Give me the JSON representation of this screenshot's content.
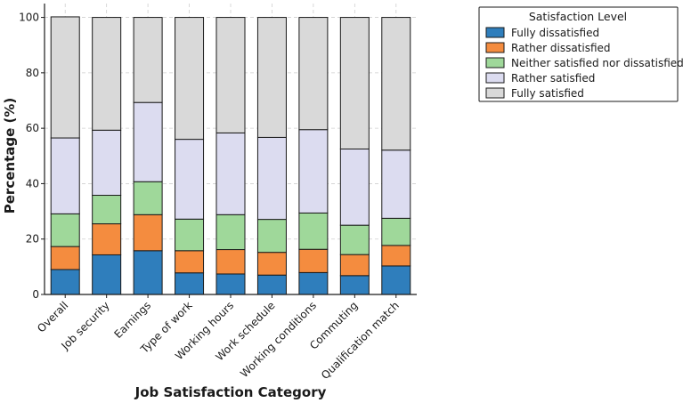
{
  "chart_data": {
    "type": "bar",
    "stacked": true,
    "title": "",
    "xlabel": "Job Satisfaction Category",
    "ylabel": "Percentage (%)",
    "ylim": [
      0,
      105
    ],
    "yticks": [
      0,
      20,
      40,
      60,
      80,
      100
    ],
    "grid": true,
    "categories": [
      "Overall",
      "Job security",
      "Earnings",
      "Type of work",
      "Working hours",
      "Work schedule",
      "Working conditions",
      "Commuting",
      "Qualification match"
    ],
    "legend": {
      "title": "Satisfaction Level",
      "placement": "outside-top-right"
    },
    "series": [
      {
        "name": "Fully dissatisfied",
        "color": "#2f7ebc",
        "values": [
          9.0,
          14.3,
          15.8,
          7.8,
          7.4,
          7.0,
          7.9,
          6.8,
          10.3
        ]
      },
      {
        "name": "Rather dissatisfied",
        "color": "#f48c3f",
        "values": [
          8.3,
          11.2,
          13.0,
          8.0,
          8.8,
          8.2,
          8.4,
          7.6,
          7.4
        ]
      },
      {
        "name": "Neither satisfied nor dissatisfied",
        "color": "#9fd89a",
        "values": [
          11.8,
          10.3,
          11.9,
          11.4,
          12.6,
          11.9,
          13.1,
          10.6,
          9.8
        ]
      },
      {
        "name": "Rather satisfied",
        "color": "#dcdcf0",
        "values": [
          27.4,
          23.5,
          28.6,
          28.8,
          29.5,
          29.6,
          30.1,
          27.5,
          24.6
        ]
      },
      {
        "name": "Fully satisfied",
        "color": "#d9d9d9",
        "values": [
          43.7,
          40.7,
          30.7,
          44.0,
          41.7,
          43.3,
          40.5,
          47.5,
          47.9
        ]
      }
    ]
  }
}
